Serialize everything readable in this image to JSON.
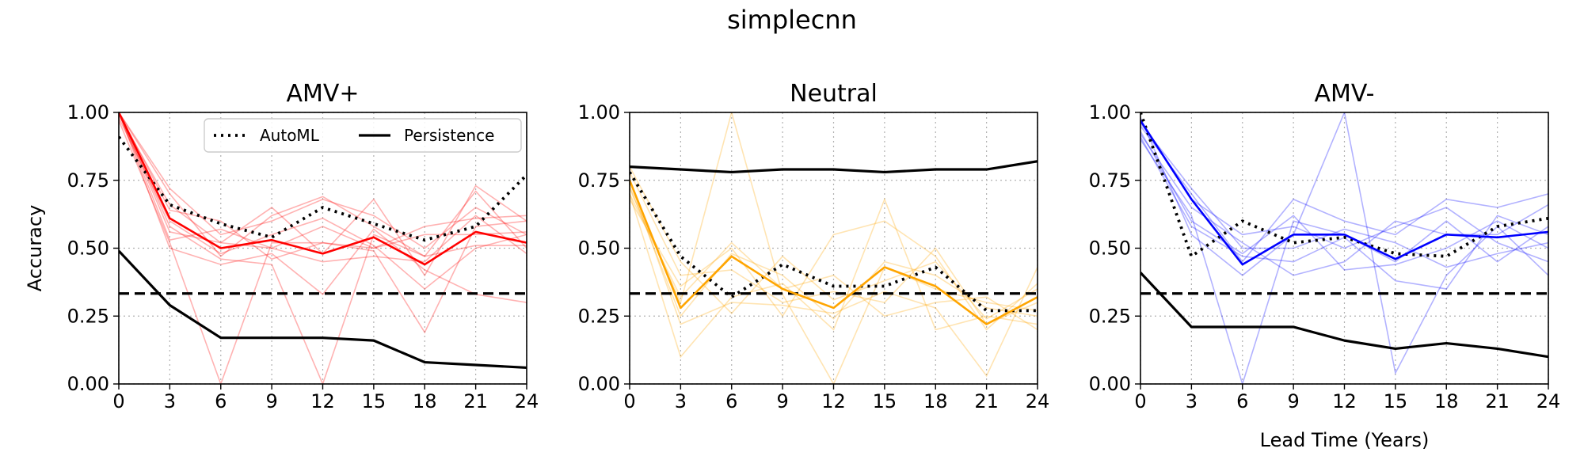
{
  "figure": {
    "suptitle": "simplecnn"
  },
  "chart_data": [
    {
      "type": "line",
      "title": "AMV+",
      "xlabel": "",
      "ylabel": "Accuracy",
      "x": [
        0,
        3,
        6,
        9,
        12,
        15,
        18,
        21,
        24
      ],
      "xlim": [
        0,
        24
      ],
      "ylim": [
        0,
        1
      ],
      "xticks": [
        "0",
        "3",
        "6",
        "9",
        "12",
        "15",
        "18",
        "21",
        "24"
      ],
      "yticks": [
        "0.00",
        "0.25",
        "0.50",
        "0.75",
        "1.00"
      ],
      "grid": true,
      "accent_color": "#ff0000",
      "legend": {
        "position": "top-right",
        "entries": [
          "AutoML",
          "Persistence"
        ]
      },
      "series": [
        {
          "name": "AutoML",
          "style": "dotted",
          "color": "#000000",
          "values": [
            0.91,
            0.66,
            0.59,
            0.54,
            0.65,
            0.59,
            0.53,
            0.58,
            0.77
          ]
        },
        {
          "name": "Persistence",
          "style": "solid",
          "color": "#000000",
          "values": [
            0.49,
            0.29,
            0.17,
            0.17,
            0.17,
            0.16,
            0.08,
            0.07,
            0.06
          ]
        },
        {
          "style": "mean",
          "color": "#ff0000",
          "values": [
            1.0,
            0.61,
            0.5,
            0.53,
            0.48,
            0.54,
            0.44,
            0.56,
            0.52
          ]
        }
      ],
      "members": [
        [
          1.0,
          0.7,
          0.47,
          0.62,
          0.69,
          0.58,
          0.47,
          0.71,
          0.5
        ],
        [
          1.0,
          0.56,
          0.52,
          0.5,
          0.58,
          0.5,
          0.58,
          0.61,
          0.62
        ],
        [
          0.97,
          0.52,
          0.0,
          0.52,
          0.52,
          0.5,
          0.55,
          0.55,
          0.56
        ],
        [
          1.0,
          0.58,
          0.46,
          0.44,
          0.0,
          0.55,
          0.47,
          0.51,
          0.51
        ],
        [
          1.0,
          0.64,
          0.6,
          0.46,
          0.52,
          0.49,
          0.19,
          0.58,
          0.6
        ],
        [
          0.99,
          0.66,
          0.52,
          0.65,
          0.48,
          0.68,
          0.4,
          0.73,
          0.6
        ],
        [
          1.0,
          0.53,
          0.57,
          0.5,
          0.45,
          0.47,
          0.45,
          0.62,
          0.48
        ],
        [
          0.98,
          0.6,
          0.48,
          0.55,
          0.61,
          0.51,
          0.35,
          0.5,
          0.55
        ],
        [
          1.0,
          0.72,
          0.55,
          0.6,
          0.68,
          0.62,
          0.5,
          0.65,
          0.55
        ],
        [
          1.0,
          0.5,
          0.44,
          0.48,
          0.33,
          0.57,
          0.42,
          0.33,
          0.3
        ]
      ],
      "reference_line": {
        "y": 0.333,
        "style": "dashed",
        "color": "#000000"
      }
    },
    {
      "type": "line",
      "title": "Neutral",
      "xlabel": "",
      "ylabel": "",
      "x": [
        0,
        3,
        6,
        9,
        12,
        15,
        18,
        21,
        24
      ],
      "xlim": [
        0,
        24
      ],
      "ylim": [
        0,
        1
      ],
      "xticks": [
        "0",
        "3",
        "6",
        "9",
        "12",
        "15",
        "18",
        "21",
        "24"
      ],
      "yticks": [
        "0.00",
        "0.25",
        "0.50",
        "0.75",
        "1.00"
      ],
      "grid": true,
      "accent_color": "#ffa500",
      "series": [
        {
          "name": "AutoML",
          "style": "dotted",
          "color": "#000000",
          "values": [
            0.78,
            0.47,
            0.32,
            0.44,
            0.36,
            0.36,
            0.43,
            0.27,
            0.27
          ]
        },
        {
          "name": "Persistence",
          "style": "solid",
          "color": "#000000",
          "values": [
            0.8,
            0.79,
            0.78,
            0.79,
            0.79,
            0.78,
            0.79,
            0.79,
            0.82
          ]
        },
        {
          "style": "mean",
          "color": "#ffa500",
          "values": [
            0.75,
            0.28,
            0.47,
            0.35,
            0.28,
            0.43,
            0.36,
            0.22,
            0.32
          ]
        }
      ],
      "members": [
        [
          0.75,
          0.22,
          0.3,
          0.29,
          0.26,
          0.34,
          0.28,
          0.03,
          0.43
        ],
        [
          0.7,
          0.1,
          0.32,
          0.37,
          0.2,
          0.68,
          0.2,
          0.25,
          0.22
        ],
        [
          0.72,
          0.3,
          1.0,
          0.33,
          0.0,
          0.43,
          0.35,
          0.3,
          0.27
        ],
        [
          0.68,
          0.36,
          0.5,
          0.25,
          0.55,
          0.6,
          0.47,
          0.2,
          0.37
        ],
        [
          0.78,
          0.4,
          0.42,
          0.3,
          0.34,
          0.3,
          0.5,
          0.22,
          0.3
        ],
        [
          0.73,
          0.25,
          0.48,
          0.4,
          0.24,
          0.45,
          0.4,
          0.28,
          0.25
        ],
        [
          0.8,
          0.45,
          0.26,
          0.47,
          0.31,
          0.38,
          0.45,
          0.24,
          0.35
        ],
        [
          0.7,
          0.32,
          0.52,
          0.35,
          0.4,
          0.25,
          0.3,
          0.32,
          0.2
        ]
      ],
      "reference_line": {
        "y": 0.333,
        "style": "dashed",
        "color": "#000000"
      }
    },
    {
      "type": "line",
      "title": "AMV-",
      "xlabel": "Lead Time (Years)",
      "ylabel": "",
      "x": [
        0,
        3,
        6,
        9,
        12,
        15,
        18,
        21,
        24
      ],
      "xlim": [
        0,
        24
      ],
      "ylim": [
        0,
        1
      ],
      "xticks": [
        "0",
        "3",
        "6",
        "9",
        "12",
        "15",
        "18",
        "21",
        "24"
      ],
      "yticks": [
        "0.00",
        "0.25",
        "0.50",
        "0.75",
        "1.00"
      ],
      "grid": true,
      "accent_color": "#0000ff",
      "series": [
        {
          "name": "AutoML",
          "style": "dotted",
          "color": "#000000",
          "values": [
            1.0,
            0.47,
            0.6,
            0.52,
            0.54,
            0.48,
            0.47,
            0.58,
            0.61
          ]
        },
        {
          "name": "Persistence",
          "style": "solid",
          "color": "#000000",
          "values": [
            0.41,
            0.21,
            0.21,
            0.21,
            0.16,
            0.13,
            0.15,
            0.13,
            0.1
          ]
        },
        {
          "style": "mean",
          "color": "#0000ff",
          "values": [
            0.97,
            0.68,
            0.44,
            0.55,
            0.55,
            0.46,
            0.55,
            0.54,
            0.56
          ]
        }
      ],
      "members": [
        [
          0.95,
          0.7,
          0.45,
          0.68,
          0.6,
          0.55,
          0.68,
          0.65,
          0.7
        ],
        [
          0.9,
          0.62,
          0.0,
          0.6,
          0.55,
          0.45,
          0.6,
          0.45,
          0.58
        ],
        [
          0.98,
          0.55,
          0.4,
          0.55,
          1.0,
          0.04,
          0.4,
          0.58,
          0.4
        ],
        [
          0.92,
          0.65,
          0.52,
          0.4,
          0.45,
          0.6,
          0.55,
          0.55,
          0.66
        ],
        [
          0.96,
          0.72,
          0.5,
          0.5,
          0.57,
          0.52,
          0.43,
          0.48,
          0.52
        ],
        [
          0.93,
          0.6,
          0.48,
          0.62,
          0.42,
          0.44,
          0.5,
          0.6,
          0.5
        ],
        [
          0.97,
          0.68,
          0.55,
          0.58,
          0.5,
          0.58,
          0.65,
          0.52,
          0.45
        ],
        [
          0.91,
          0.58,
          0.47,
          0.45,
          0.54,
          0.38,
          0.35,
          0.62,
          0.55
        ]
      ],
      "reference_line": {
        "y": 0.333,
        "style": "dashed",
        "color": "#000000"
      }
    }
  ]
}
